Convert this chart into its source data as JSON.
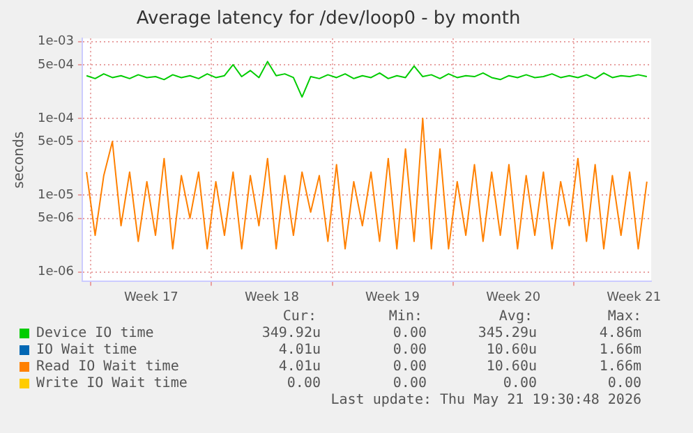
{
  "chart_data": {
    "type": "line",
    "title": "Average latency for /dev/loop0 - by month",
    "ylabel": "seconds",
    "log": "y",
    "grid": true,
    "legend": "bottom",
    "marker": "none",
    "line_style": "solid",
    "xlim": [
      "2026-04-19T12:00",
      "2026-05-22T12:00"
    ],
    "xticks": [
      {
        "value": "2026-04-20",
        "label": null
      },
      {
        "value": "2026-04-23T12:00",
        "label": "Week 17"
      },
      {
        "value": "2026-04-27",
        "label": null
      },
      {
        "value": "2026-04-30T12:00",
        "label": "Week 18"
      },
      {
        "value": "2026-05-04",
        "label": null
      },
      {
        "value": "2026-05-07T12:00",
        "label": "Week 19"
      },
      {
        "value": "2026-05-11",
        "label": null
      },
      {
        "value": "2026-05-14T12:00",
        "label": "Week 20"
      },
      {
        "value": "2026-05-18",
        "label": null
      },
      {
        "value": "2026-05-21T12:00",
        "label": "Week 21"
      }
    ],
    "ylim": [
      7.5e-07,
      0.0011
    ],
    "yticks": [
      {
        "value": 1e-06,
        "label": "1e-06"
      },
      {
        "value": 5e-06,
        "label": "5e-06"
      },
      {
        "value": 1e-05,
        "label": "1e-05"
      },
      {
        "value": 5e-05,
        "label": "5e-05"
      },
      {
        "value": 0.0001,
        "label": "1e-04"
      },
      {
        "value": 0.0005,
        "label": "5e-04"
      },
      {
        "value": 0.001,
        "label": "1e-03"
      }
    ],
    "x": [
      "2026-04-19T18:00",
      "2026-04-20T06:00",
      "2026-04-20T18:00",
      "2026-04-21T06:00",
      "2026-04-21T18:00",
      "2026-04-22T06:00",
      "2026-04-22T18:00",
      "2026-04-23T06:00",
      "2026-04-23T18:00",
      "2026-04-24T06:00",
      "2026-04-24T18:00",
      "2026-04-25T06:00",
      "2026-04-25T18:00",
      "2026-04-26T06:00",
      "2026-04-26T18:00",
      "2026-04-27T06:00",
      "2026-04-27T18:00",
      "2026-04-28T06:00",
      "2026-04-28T18:00",
      "2026-04-29T06:00",
      "2026-04-29T18:00",
      "2026-04-30T06:00",
      "2026-04-30T18:00",
      "2026-05-01T06:00",
      "2026-05-01T18:00",
      "2026-05-02T06:00",
      "2026-05-02T18:00",
      "2026-05-03T06:00",
      "2026-05-03T18:00",
      "2026-05-04T06:00",
      "2026-05-04T18:00",
      "2026-05-05T06:00",
      "2026-05-05T18:00",
      "2026-05-06T06:00",
      "2026-05-06T18:00",
      "2026-05-07T06:00",
      "2026-05-07T18:00",
      "2026-05-08T06:00",
      "2026-05-08T18:00",
      "2026-05-09T06:00",
      "2026-05-09T18:00",
      "2026-05-10T06:00",
      "2026-05-10T18:00",
      "2026-05-11T06:00",
      "2026-05-11T18:00",
      "2026-05-12T06:00",
      "2026-05-12T18:00",
      "2026-05-13T06:00",
      "2026-05-13T18:00",
      "2026-05-14T06:00",
      "2026-05-14T18:00",
      "2026-05-15T06:00",
      "2026-05-15T18:00",
      "2026-05-16T06:00",
      "2026-05-16T18:00",
      "2026-05-17T06:00",
      "2026-05-17T18:00",
      "2026-05-18T06:00",
      "2026-05-18T18:00",
      "2026-05-19T06:00",
      "2026-05-19T18:00",
      "2026-05-20T06:00",
      "2026-05-20T18:00",
      "2026-05-21T06:00",
      "2026-05-21T18:00",
      "2026-05-22T06:00"
    ],
    "series": [
      {
        "name": "Device IO time",
        "color": "#00cc00",
        "values": [
          0.00036,
          0.00033,
          0.00038,
          0.00034,
          0.00036,
          0.00033,
          0.00037,
          0.00034,
          0.00035,
          0.00032,
          0.00037,
          0.00034,
          0.00036,
          0.00033,
          0.00038,
          0.00034,
          0.00036,
          0.0005,
          0.00035,
          0.00042,
          0.00034,
          0.00055,
          0.00036,
          0.00038,
          0.00034,
          0.00019,
          0.00035,
          0.00033,
          0.00037,
          0.00034,
          0.00038,
          0.00033,
          0.00036,
          0.00034,
          0.00039,
          0.00033,
          0.00036,
          0.00034,
          0.00048,
          0.00035,
          0.00037,
          0.00033,
          0.00038,
          0.00034,
          0.00036,
          0.00035,
          0.00039,
          0.00034,
          0.00032,
          0.00036,
          0.00034,
          0.00037,
          0.00034,
          0.00035,
          0.00038,
          0.00034,
          0.00036,
          0.00034,
          0.00037,
          0.00033,
          0.00039,
          0.00034,
          0.00036,
          0.00035,
          0.00037,
          0.00035
        ]
      },
      {
        "name": "IO Wait time",
        "color": "#0066b3",
        "values": [
          null,
          null,
          null,
          null,
          null,
          null,
          null,
          null,
          null,
          null,
          null,
          null,
          null,
          null,
          null,
          null,
          null,
          null,
          null,
          null,
          null,
          null,
          null,
          null,
          null,
          null,
          null,
          null,
          null,
          null,
          null,
          null,
          null,
          null,
          null,
          null,
          null,
          null,
          null,
          null,
          null,
          null,
          null,
          null,
          null,
          null,
          null,
          null,
          null,
          null,
          null,
          null,
          null,
          null,
          null,
          null,
          null,
          null,
          null,
          null,
          null,
          null,
          null,
          null,
          null,
          null
        ]
      },
      {
        "name": "Read IO Wait time",
        "color": "#ff8000",
        "values": [
          2e-05,
          3e-06,
          1.8e-05,
          5e-05,
          4e-06,
          2e-05,
          2.5e-06,
          1.5e-05,
          3e-06,
          3e-05,
          2e-06,
          1.8e-05,
          5e-06,
          2e-05,
          2e-06,
          1.5e-05,
          3e-06,
          2e-05,
          2e-06,
          1.8e-05,
          4e-06,
          3e-05,
          2e-06,
          1.8e-05,
          3e-06,
          2e-05,
          6e-06,
          1.8e-05,
          2.5e-06,
          2.5e-05,
          2e-06,
          1.5e-05,
          4e-06,
          2e-05,
          2.5e-06,
          3e-05,
          2e-06,
          4e-05,
          2.5e-06,
          0.0001,
          2e-06,
          4e-05,
          2e-06,
          1.5e-05,
          3e-06,
          2.5e-05,
          2.5e-06,
          2e-05,
          3e-06,
          2.5e-05,
          2e-06,
          1.8e-05,
          3e-06,
          2e-05,
          2e-06,
          1.5e-05,
          4e-06,
          3e-05,
          2.5e-06,
          2.5e-05,
          2e-06,
          1.8e-05,
          3e-06,
          2e-05,
          2e-06,
          1.5e-05
        ]
      },
      {
        "name": "Write IO Wait time",
        "color": "#ffcc00",
        "values": [
          null,
          null,
          null,
          null,
          null,
          null,
          null,
          null,
          null,
          null,
          null,
          null,
          null,
          null,
          null,
          null,
          null,
          null,
          null,
          null,
          null,
          null,
          null,
          null,
          null,
          null,
          null,
          null,
          null,
          null,
          null,
          null,
          null,
          null,
          null,
          null,
          null,
          null,
          null,
          null,
          null,
          null,
          null,
          null,
          null,
          null,
          null,
          null,
          null,
          null,
          null,
          null,
          null,
          null,
          null,
          null,
          null,
          null,
          null,
          null,
          null,
          null,
          null,
          null,
          null,
          null
        ]
      }
    ],
    "annotations": [
      "Cur:",
      "Min:",
      "Avg:",
      "Max:",
      "349.92u",
      "0.00",
      "345.29u",
      "4.86m",
      "4.01u",
      "0.00",
      "10.60u",
      "1.66m",
      "4.01u",
      "0.00",
      "10.60u",
      "1.66m",
      "0.00",
      "0.00",
      "0.00",
      "0.00",
      "Last update: Thu May 21 19:30:48 2026"
    ]
  }
}
